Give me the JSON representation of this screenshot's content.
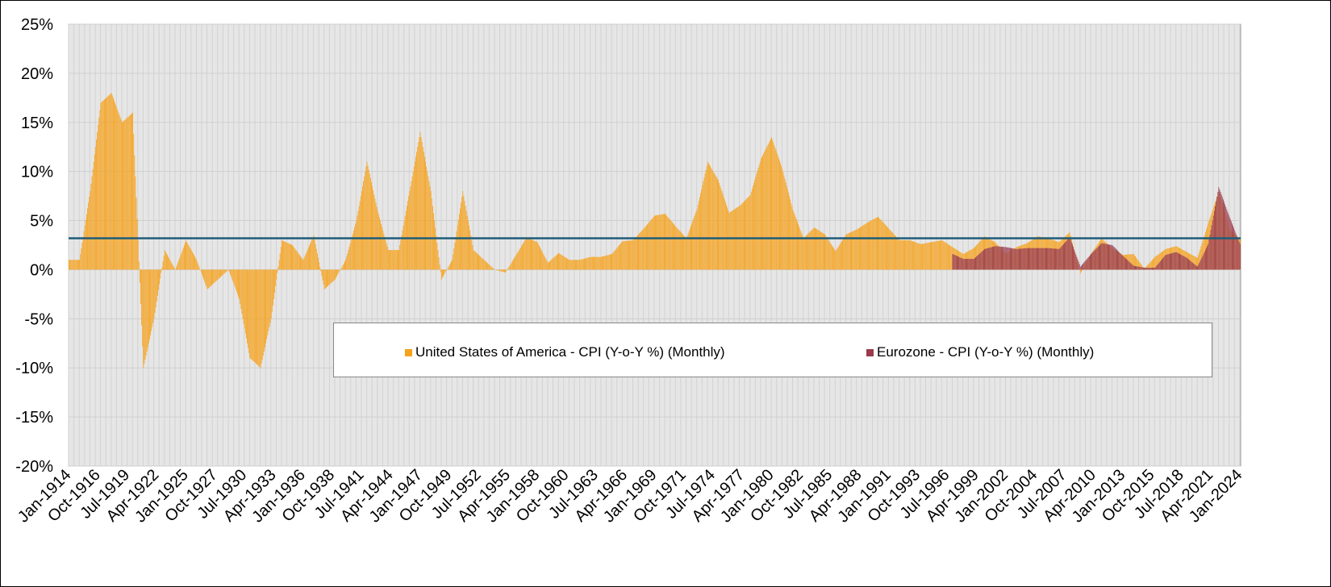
{
  "chart_data": {
    "type": "bar",
    "title": "",
    "xlabel": "",
    "ylabel": "",
    "ylim": [
      -20,
      25
    ],
    "yticks": [
      "-20%",
      "-15%",
      "-10%",
      "-5%",
      "0%",
      "5%",
      "10%",
      "15%",
      "20%",
      "25%"
    ],
    "ytick_values": [
      -20,
      -15,
      -10,
      -5,
      0,
      5,
      10,
      15,
      20,
      25
    ],
    "xticks": [
      "Jan-1914",
      "Oct-1916",
      "Jul-1919",
      "Apr-1922",
      "Jan-1925",
      "Oct-1927",
      "Jul-1930",
      "Apr-1933",
      "Jan-1936",
      "Oct-1938",
      "Jul-1941",
      "Apr-1944",
      "Jan-1947",
      "Oct-1949",
      "Jul-1952",
      "Apr-1955",
      "Jan-1958",
      "Oct-1960",
      "Jul-1963",
      "Apr-1966",
      "Jan-1969",
      "Oct-1971",
      "Jul-1974",
      "Apr-1977",
      "Jan-1980",
      "Oct-1982",
      "Jul-1985",
      "Apr-1988",
      "Jan-1991",
      "Oct-1993",
      "Jul-1996",
      "Apr-1999",
      "Jan-2002",
      "Oct-2004",
      "Jul-2007",
      "Apr-2010",
      "Jan-2013",
      "Oct-2015",
      "Jul-2018",
      "Apr-2021",
      "Jan-2024"
    ],
    "x_range": [
      "Jan-1914",
      "Jan-2024"
    ],
    "grid": "vertical and horizontal",
    "legend_placement": "bottom-center inside",
    "reference_line": {
      "value": 3.2,
      "color": "#1f5c78"
    },
    "series": [
      {
        "name": "United States of America - CPI (Y-o-Y %) (Monthly)",
        "color": "#f7a21b",
        "years": [
          1914,
          1915,
          1916,
          1917,
          1918,
          1919,
          1920,
          1921,
          1922,
          1923,
          1924,
          1925,
          1926,
          1927,
          1928,
          1929,
          1930,
          1931,
          1932,
          1933,
          1934,
          1935,
          1936,
          1937,
          1938,
          1939,
          1940,
          1941,
          1942,
          1943,
          1944,
          1945,
          1946,
          1947,
          1948,
          1949,
          1950,
          1951,
          1952,
          1953,
          1954,
          1955,
          1956,
          1957,
          1958,
          1959,
          1960,
          1961,
          1962,
          1963,
          1964,
          1965,
          1966,
          1967,
          1968,
          1969,
          1970,
          1971,
          1972,
          1973,
          1974,
          1975,
          1976,
          1977,
          1978,
          1979,
          1980,
          1981,
          1982,
          1983,
          1984,
          1985,
          1986,
          1987,
          1988,
          1989,
          1990,
          1991,
          1992,
          1993,
          1994,
          1995,
          1996,
          1997,
          1998,
          1999,
          2000,
          2001,
          2002,
          2003,
          2004,
          2005,
          2006,
          2007,
          2008,
          2009,
          2010,
          2011,
          2012,
          2013,
          2014,
          2015,
          2016,
          2017,
          2018,
          2019,
          2020,
          2021,
          2022,
          2023,
          2024
        ],
        "values": [
          1,
          1,
          8,
          17,
          18,
          15,
          16,
          -10,
          -5,
          2,
          0,
          3,
          1,
          -2,
          -1,
          0,
          -3,
          -9,
          -10,
          -5,
          3,
          2.5,
          1,
          3.5,
          -2,
          -1,
          1,
          5,
          11,
          6,
          2,
          2,
          8,
          14,
          8,
          -1,
          1,
          8,
          2,
          1,
          0,
          -0.3,
          1.5,
          3.3,
          2.8,
          0.7,
          1.7,
          1,
          1,
          1.3,
          1.3,
          1.6,
          2.9,
          3,
          4.2,
          5.5,
          5.7,
          4.4,
          3.2,
          6.2,
          11,
          9.1,
          5.8,
          6.5,
          7.6,
          11.3,
          13.5,
          10.3,
          6.1,
          3.2,
          4.3,
          3.6,
          1.9,
          3.6,
          4.1,
          4.8,
          5.4,
          4.2,
          3,
          3,
          2.6,
          2.8,
          3,
          2.3,
          1.6,
          2.2,
          3.4,
          2.8,
          1.6,
          2.3,
          2.7,
          3.4,
          3.2,
          2.8,
          3.8,
          -0.4,
          1.6,
          3.2,
          2.1,
          1.5,
          1.6,
          0.1,
          1.3,
          2.1,
          2.4,
          1.8,
          1.2,
          4.7,
          8,
          4.1,
          3.1
        ]
      },
      {
        "name": "Eurozone - CPI (Y-o-Y %) (Monthly)",
        "color": "#9b3a4a",
        "years": [
          1997,
          1998,
          1999,
          2000,
          2001,
          2002,
          2003,
          2004,
          2005,
          2006,
          2007,
          2008,
          2009,
          2010,
          2011,
          2012,
          2013,
          2014,
          2015,
          2016,
          2017,
          2018,
          2019,
          2020,
          2021,
          2022,
          2023,
          2024
        ],
        "values": [
          1.6,
          1.1,
          1.1,
          2.1,
          2.4,
          2.3,
          2.1,
          2.2,
          2.2,
          2.2,
          2.1,
          3.3,
          0.3,
          1.6,
          2.7,
          2.5,
          1.4,
          0.4,
          0.2,
          0.2,
          1.5,
          1.8,
          1.2,
          0.3,
          2.6,
          8.4,
          5.4,
          2.6
        ]
      }
    ]
  }
}
